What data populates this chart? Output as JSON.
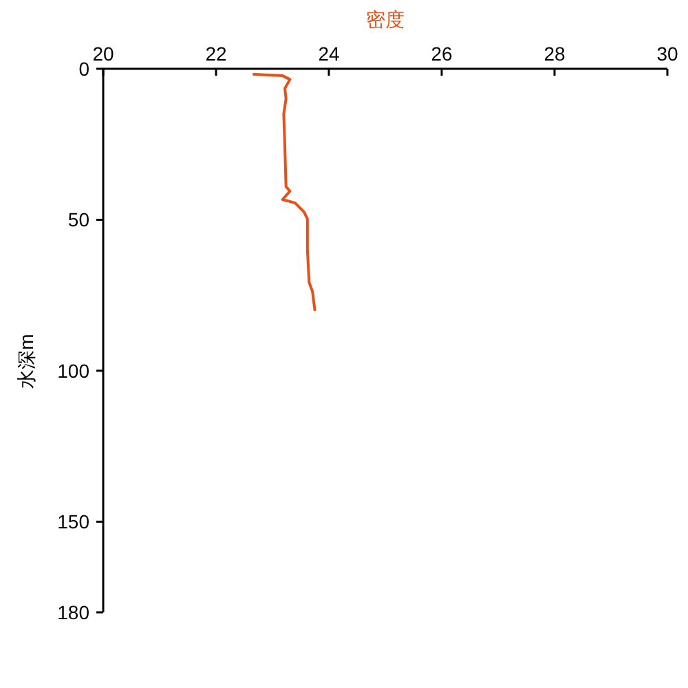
{
  "chart_data": {
    "type": "line",
    "xlabel": "密度",
    "ylabel": "水深m",
    "xlim": [
      20,
      30
    ],
    "xticks": [
      20,
      22,
      24,
      26,
      28,
      30
    ],
    "ylim": [
      180,
      0
    ],
    "yticks": [
      0,
      50,
      100,
      150,
      180
    ],
    "series": [
      {
        "color": "#e8501a",
        "x": [
          22.67,
          23.18,
          23.31,
          23.22,
          23.24,
          23.2,
          23.22,
          23.24,
          23.31,
          23.18,
          23.4,
          23.56,
          23.62,
          23.62,
          23.65,
          23.71,
          23.75
        ],
        "values": [
          1.8,
          2.3,
          3.5,
          6.5,
          10,
          15,
          25.7,
          39,
          40.5,
          43.3,
          44.4,
          47.4,
          49.7,
          60,
          70.7,
          73.8,
          79.8
        ]
      }
    ]
  }
}
